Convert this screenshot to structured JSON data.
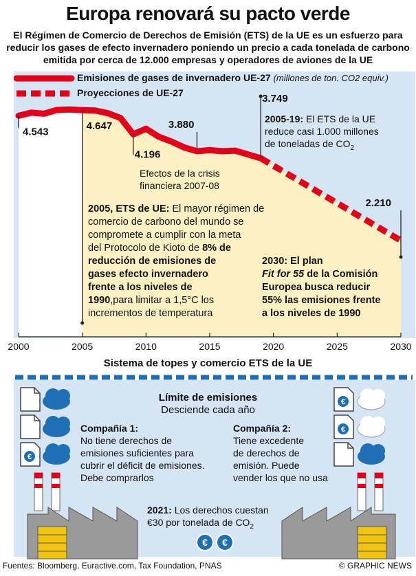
{
  "header": {
    "title": "Europa renovará su pacto verde",
    "subtitle": "El Régimen de Comercio de Derechos de Emisión (ETS) de la UE es un esfuerzo para reducir los gases de efecto invernadero poniendo un precio a cada tonelada de carbono emitida por cerca de 12.000 empresas y operadores de aviones de la UE"
  },
  "legend": {
    "actual": "Emisiones de gases de invernadero UE-27",
    "unit": "(millones de ton. CO2 equiv.)",
    "projection": "Proyecciones de UE-27"
  },
  "chart_data": {
    "type": "line",
    "xlabel": "",
    "ylabel": "",
    "xlim": [
      2000,
      2030
    ],
    "x_ticks": [
      2000,
      2005,
      2010,
      2015,
      2020,
      2025,
      2030
    ],
    "series": [
      {
        "name": "Emisiones de gases de invernadero UE-27",
        "style": "solid",
        "color": "#e2001a",
        "x": [
          2000,
          2001,
          2002,
          2003,
          2004,
          2005,
          2006,
          2007,
          2008,
          2009,
          2010,
          2011,
          2012,
          2013,
          2014,
          2015,
          2016,
          2017,
          2018,
          2019
        ],
        "y": [
          4543,
          4600,
          4580,
          4650,
          4660,
          4647,
          4640,
          4590,
          4500,
          4196,
          4300,
          4150,
          4060,
          3950,
          3880,
          3900,
          3880,
          3890,
          3820,
          3749
        ]
      },
      {
        "name": "Proyecciones de UE-27",
        "style": "dashed",
        "color": "#e2001a",
        "x": [
          2019,
          2030
        ],
        "y": [
          3749,
          2210
        ]
      }
    ],
    "data_labels": [
      {
        "x": 2000,
        "y": 4543,
        "label": "4.543"
      },
      {
        "x": 2005,
        "y": 4647,
        "label": "4.647"
      },
      {
        "x": 2009,
        "y": 4196,
        "label": "4.196"
      },
      {
        "x": 2014,
        "y": 3880,
        "label": "3.880"
      },
      {
        "x": 2019,
        "y": 3749,
        "label": "3.749"
      },
      {
        "x": 2030,
        "y": 2210,
        "label": "2.210"
      }
    ]
  },
  "annotations": {
    "crisis_line1": "Efectos de la crisis",
    "crisis_line2": "financiera 2007-08",
    "ets2005_lead": "2005-19:",
    "ets2005_rest": "El ETS de la UE",
    "ets2005_line2": "reduce casi 1.000 millones",
    "ets2005_line3": "de toneladas de CO",
    "ets2005_sub": "2",
    "ets_start_lead": "2005, ETS de UE:",
    "ets_start_rest1": "El mayor régimen de",
    "ets_start_line2": "comercio de carbono del mundo se",
    "ets_start_line3": "compromete a cumplir con la meta",
    "ets_start_line4a": "del Protocolo de Kioto de ",
    "ets_start_line4b": "8% de",
    "ets_start_line5": "reducción de emisiones de",
    "ets_start_line6": "gases efecto invernadero",
    "ets_start_line7": "frente a los niveles de",
    "ets_start_line8a": "1990",
    "ets_start_line8b": ",para limitar a 1,5°C los",
    "ets_start_line9": "incrementos de temperatura",
    "plan_line1": "2030: El plan",
    "plan_line2a": "Fit for 55",
    "plan_line2b": " de la Comisión",
    "plan_line3": "Europea busca reducir",
    "plan_line4": "55% las emisiones frente",
    "plan_line5": "a los niveles de 1990"
  },
  "cap_trade": {
    "section_title": "Sistema de topes y comercio  ETS de la UE",
    "limit_title": "Límite de emisiones",
    "limit_sub": "Desciende cada año",
    "company1_title": "Compañía 1:",
    "company1_l1": "No tiene derechos de",
    "company1_l2": "emisiones suficientes para",
    "company1_l3": "cubrir el déficit de emisiones.",
    "company1_l4": "Debe comprarlos",
    "company2_title": "Compañía 2:",
    "company2_l1": "Tiene excedente",
    "company2_l2": "de derechos de",
    "company2_l3": "emisión. Puede",
    "company2_l4": "vender los que no usa",
    "price_lead": "2021:",
    "price_rest": "Los derechos cuestan",
    "price_line2": "€30 por tonelada de CO",
    "price_sub": "2",
    "euro_symbol": "€"
  },
  "footer": {
    "sources": "Fuentes: Bloomberg, Euractive.com, Tax Foundation, PNAS",
    "credit": "© GRAPHIC NEWS"
  }
}
